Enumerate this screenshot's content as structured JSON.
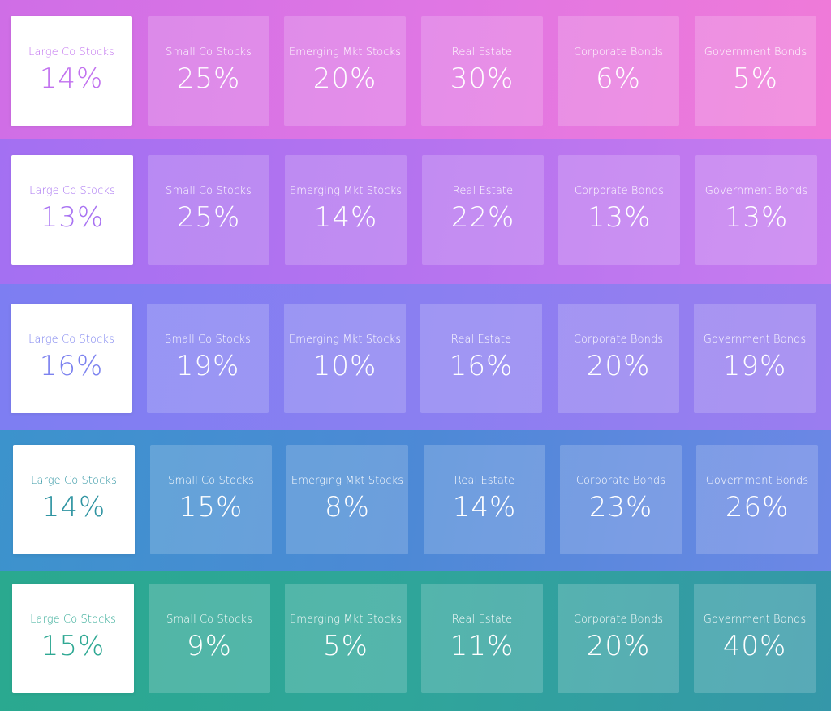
{
  "rows": [
    {
      "cards": [
        {
          "label": "Large Co Stocks",
          "value": "14%"
        },
        {
          "label": "Small Co Stocks",
          "value": "25%"
        },
        {
          "label": "Emerging Mkt Stocks",
          "value": "20%"
        },
        {
          "label": "Real Estate",
          "value": "30%"
        },
        {
          "label": "Corporate Bonds",
          "value": "6%"
        },
        {
          "label": "Government Bonds",
          "value": "5%"
        }
      ]
    },
    {
      "cards": [
        {
          "label": "Large Co Stocks",
          "value": "13%"
        },
        {
          "label": "Small Co Stocks",
          "value": "25%"
        },
        {
          "label": "Emerging Mkt Stocks",
          "value": "14%"
        },
        {
          "label": "Real Estate",
          "value": "22%"
        },
        {
          "label": "Corporate Bonds",
          "value": "13%"
        },
        {
          "label": "Government Bonds",
          "value": "13%"
        }
      ]
    },
    {
      "cards": [
        {
          "label": "Large Co Stocks",
          "value": "16%"
        },
        {
          "label": "Small Co Stocks",
          "value": "19%"
        },
        {
          "label": "Emerging Mkt Stocks",
          "value": "10%"
        },
        {
          "label": "Real Estate",
          "value": "16%"
        },
        {
          "label": "Corporate Bonds",
          "value": "20%"
        },
        {
          "label": "Government Bonds",
          "value": "19%"
        }
      ]
    },
    {
      "cards": [
        {
          "label": "Large Co Stocks",
          "value": "14%"
        },
        {
          "label": "Small Co Stocks",
          "value": "15%"
        },
        {
          "label": "Emerging Mkt Stocks",
          "value": "8%"
        },
        {
          "label": "Real Estate",
          "value": "14%"
        },
        {
          "label": "Corporate Bonds",
          "value": "23%"
        },
        {
          "label": "Government Bonds",
          "value": "26%"
        }
      ]
    },
    {
      "cards": [
        {
          "label": "Large Co Stocks",
          "value": "15%"
        },
        {
          "label": "Small Co Stocks",
          "value": "9%"
        },
        {
          "label": "Emerging Mkt Stocks",
          "value": "5%"
        },
        {
          "label": "Real Estate",
          "value": "11%"
        },
        {
          "label": "Corporate Bonds",
          "value": "20%"
        },
        {
          "label": "Government Bonds",
          "value": "40%"
        }
      ]
    }
  ],
  "colors": {
    "row1_accent": "#c170ef",
    "row2_accent": "#a872f2",
    "row3_accent": "#7c82ef",
    "row4_accent": "#2f94a2",
    "row5_accent": "#2ea893"
  }
}
